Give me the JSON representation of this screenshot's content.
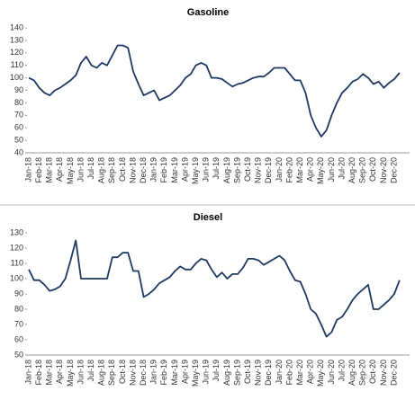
{
  "chart_data": [
    {
      "type": "line",
      "title": "Gasoline",
      "categories": [
        "Jan-18",
        null,
        "Feb-18",
        null,
        "Mar-18",
        null,
        "Apr-18",
        null,
        "May-18",
        null,
        "Jun-18",
        null,
        "Jul-18",
        null,
        "Aug-18",
        null,
        "Sep-18",
        null,
        "Oct-18",
        null,
        "Nov-18",
        null,
        "Dec-18",
        null,
        "Jan-19",
        null,
        "Feb-19",
        null,
        "Mar-19",
        null,
        "Apr-19",
        null,
        "May-19",
        null,
        "Jun-19",
        null,
        "Jul-19",
        null,
        "Aug-19",
        null,
        "Sep-19",
        null,
        "Oct-19",
        null,
        "Nov-19",
        null,
        "Dec-19",
        null,
        "Jan-20",
        null,
        "Feb-20",
        null,
        "Mar-20",
        null,
        "Apr-20",
        null,
        "May-20",
        null,
        "Jun-20",
        null,
        "Jul-20",
        null,
        "Aug-20",
        null,
        "Sep-20",
        null,
        "Oct-20",
        null,
        "Nov-20",
        null,
        "Dec-20",
        null
      ],
      "values": [
        100,
        98,
        92,
        88,
        86,
        90,
        92,
        95,
        98,
        102,
        112,
        117,
        110,
        108,
        112,
        110,
        118,
        126,
        126,
        124,
        105,
        95,
        86,
        88,
        90,
        82,
        84,
        86,
        90,
        94,
        100,
        103,
        110,
        112,
        110,
        100,
        100,
        99,
        96,
        93,
        95,
        96,
        98,
        100,
        101,
        101,
        104,
        108,
        108,
        108,
        103,
        98,
        98,
        88,
        70,
        60,
        53,
        58,
        70,
        80,
        88,
        92,
        97,
        99,
        103,
        100,
        95,
        97,
        92,
        96,
        99,
        104
      ],
      "color": "#1f3864",
      "ylim": [
        40,
        140
      ],
      "yticks": [
        40,
        50,
        60,
        70,
        80,
        90,
        100,
        110,
        120,
        130,
        140
      ]
    },
    {
      "type": "line",
      "title": "Diesel",
      "categories": [
        "Jan-18",
        null,
        "Feb-18",
        null,
        "Mar-18",
        null,
        "Apr-18",
        null,
        "May-18",
        null,
        "Jun-18",
        null,
        "Jul-18",
        null,
        "Aug-18",
        null,
        "Sep-18",
        null,
        "Oct-18",
        null,
        "Nov-18",
        null,
        "Dec-18",
        null,
        "Jan-19",
        null,
        "Feb-19",
        null,
        "Mar-19",
        null,
        "Apr-19",
        null,
        "May-19",
        null,
        "Jun-19",
        null,
        "Jul-19",
        null,
        "Aug-19",
        null,
        "Sep-19",
        null,
        "Oct-19",
        null,
        "Nov-19",
        null,
        "Dec-19",
        null,
        "Jan-20",
        null,
        "Feb-20",
        null,
        "Mar-20",
        null,
        "Apr-20",
        null,
        "May-20",
        null,
        "Jun-20",
        null,
        "Jul-20",
        null,
        "Aug-20",
        null,
        "Sep-20",
        null,
        "Oct-20",
        null,
        "Nov-20",
        null,
        "Dec-20",
        null
      ],
      "values": [
        106,
        99,
        99,
        96,
        92,
        93,
        95,
        100,
        112,
        125,
        100,
        100,
        100,
        100,
        100,
        100,
        114,
        114,
        117,
        117,
        105,
        105,
        88,
        90,
        93,
        97,
        99,
        101,
        105,
        108,
        106,
        106,
        110,
        113,
        112,
        106,
        101,
        104,
        100,
        103,
        103,
        107,
        113,
        113,
        112,
        109,
        111,
        113,
        115,
        112,
        105,
        99,
        98,
        90,
        80,
        77,
        70,
        62,
        65,
        73,
        75,
        80,
        86,
        90,
        93,
        96,
        80,
        80,
        83,
        86,
        90,
        99
      ],
      "color": "#1f3864",
      "ylim": [
        50,
        130
      ],
      "yticks": [
        50,
        60,
        70,
        80,
        90,
        100,
        110,
        120,
        130
      ]
    }
  ]
}
